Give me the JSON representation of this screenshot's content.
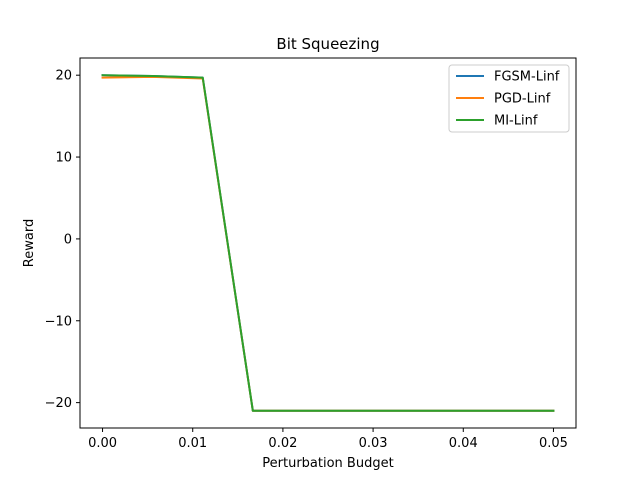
{
  "chart_data": {
    "type": "line",
    "title": "Bit Squeezing",
    "xlabel": "Perturbation Budget",
    "ylabel": "Reward",
    "xlim": [
      -0.0025,
      0.0525
    ],
    "ylim": [
      -23.1,
      22.1
    ],
    "xticks": [
      0.0,
      0.01,
      0.02,
      0.03,
      0.04,
      0.05
    ],
    "xtick_labels": [
      "0.00",
      "0.01",
      "0.02",
      "0.03",
      "0.04",
      "0.05"
    ],
    "yticks": [
      20,
      10,
      0,
      -10,
      -20
    ],
    "ytick_labels": [
      "20",
      "10",
      "0",
      "−10",
      "−20"
    ],
    "grid": false,
    "legend_position": "top-right",
    "x": [
      0.0,
      0.005556,
      0.011111,
      0.016667,
      0.022222,
      0.027778,
      0.033333,
      0.038889,
      0.044444,
      0.05
    ],
    "series": [
      {
        "name": "FGSM-Linf",
        "color": "#1f77b4",
        "values": [
          20.0,
          19.9,
          19.7,
          -21.0,
          -21.0,
          -21.0,
          -21.0,
          -21.0,
          -21.0,
          -21.0
        ]
      },
      {
        "name": "PGD-Linf",
        "color": "#ff7f0e",
        "values": [
          19.7,
          19.8,
          19.6,
          -21.0,
          -21.0,
          -21.0,
          -21.0,
          -21.0,
          -21.0,
          -21.0
        ]
      },
      {
        "name": "MI-Linf",
        "color": "#2ca02c",
        "values": [
          20.0,
          19.9,
          19.7,
          -21.0,
          -21.0,
          -21.0,
          -21.0,
          -21.0,
          -21.0,
          -21.0
        ]
      }
    ]
  }
}
